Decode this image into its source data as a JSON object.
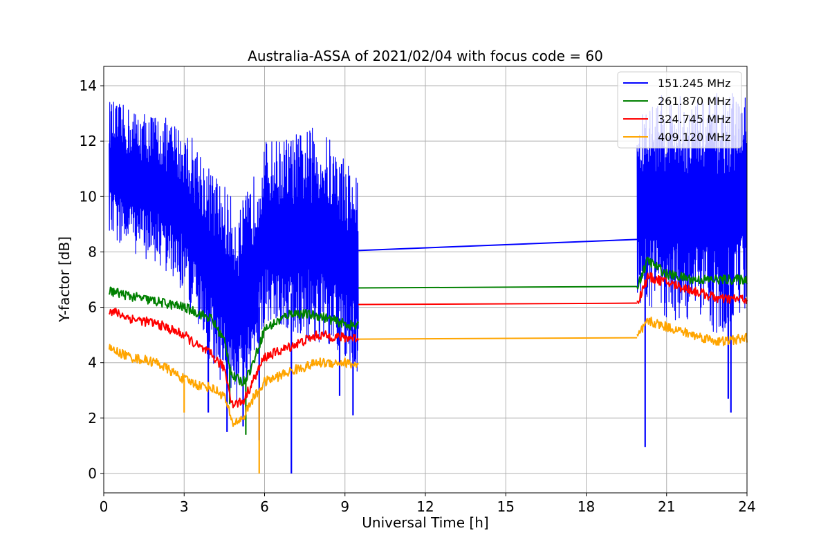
{
  "chart_data": {
    "type": "line",
    "title": "Australia-ASSA of 2021/02/04 with focus code = 60",
    "xlabel": "Universal Time [h]",
    "ylabel": "Y-factor [dB]",
    "xlim": [
      0,
      24
    ],
    "ylim": [
      -0.7,
      14.7
    ],
    "xticks": [
      0,
      3,
      6,
      9,
      12,
      15,
      18,
      21,
      24
    ],
    "yticks": [
      0,
      2,
      4,
      6,
      8,
      10,
      12,
      14
    ],
    "grid": true,
    "legend_position": "top-right",
    "data_gap_hours": [
      9.5,
      19.9
    ],
    "series": [
      {
        "name": "151.245 MHz",
        "color": "#0000ff",
        "style": "noisy",
        "x": [
          0.2,
          1,
          2,
          3,
          3.5,
          4,
          4.5,
          5,
          5.5,
          6,
          7,
          8,
          9,
          9.5,
          19.9,
          20.5,
          21,
          22,
          23,
          24
        ],
        "upper": [
          13.5,
          13.2,
          13.0,
          12.5,
          12.0,
          11.0,
          10.5,
          9.5,
          10.5,
          12.0,
          12.2,
          12.6,
          11.5,
          10.8,
          12.8,
          13.5,
          13.8,
          13.5,
          13.8,
          13.7
        ],
        "lower": [
          8.5,
          8.0,
          7.5,
          6.5,
          5.0,
          4.0,
          3.0,
          2.5,
          3.0,
          5.5,
          5.0,
          4.5,
          4.0,
          3.5,
          6.0,
          6.0,
          5.5,
          5.5,
          5.0,
          6.0
        ],
        "bridge": [
          8.05,
          8.45
        ],
        "spikes": [
          [
            3.9,
            2.2
          ],
          [
            4.6,
            1.5
          ],
          [
            5.2,
            1.7
          ],
          [
            5.8,
            1.2
          ],
          [
            7.0,
            0.0
          ],
          [
            8.8,
            2.8
          ],
          [
            9.3,
            2.1
          ],
          [
            20.2,
            0.95
          ],
          [
            23.3,
            2.7
          ],
          [
            23.4,
            2.2
          ]
        ]
      },
      {
        "name": "261.870 MHz",
        "color": "#008000",
        "style": "smooth",
        "x": [
          0.2,
          1,
          2,
          3,
          3.5,
          4,
          4.5,
          4.8,
          5.2,
          5.5,
          6,
          7,
          8,
          9,
          9.5,
          19.9,
          20.3,
          21,
          22,
          23,
          24
        ],
        "y": [
          6.6,
          6.4,
          6.2,
          6.0,
          5.8,
          5.6,
          4.8,
          3.5,
          3.3,
          3.8,
          5.2,
          5.8,
          5.7,
          5.4,
          5.3,
          6.75,
          7.7,
          7.2,
          7.0,
          7.0,
          7.0
        ],
        "bridge": [
          6.7,
          6.75
        ],
        "spikes": [
          [
            5.3,
            1.4
          ],
          [
            4.7,
            2.5
          ]
        ]
      },
      {
        "name": "324.745 MHz",
        "color": "#ff0000",
        "style": "smooth",
        "x": [
          0.2,
          1,
          2,
          3,
          3.5,
          4,
          4.5,
          4.8,
          5.2,
          5.5,
          6,
          7,
          8,
          9,
          9.5,
          19.9,
          20.3,
          21,
          22,
          23,
          24
        ],
        "y": [
          5.9,
          5.6,
          5.4,
          5.0,
          4.6,
          4.3,
          3.8,
          2.5,
          2.6,
          3.2,
          4.2,
          4.6,
          5.0,
          4.9,
          4.9,
          6.15,
          7.1,
          6.9,
          6.6,
          6.3,
          6.3
        ],
        "bridge": [
          6.1,
          6.15
        ],
        "spikes": []
      },
      {
        "name": "409.120 MHz",
        "color": "#ffa500",
        "style": "smooth",
        "x": [
          0.2,
          1,
          2,
          3,
          3.5,
          4,
          4.5,
          4.8,
          5.2,
          5.5,
          6,
          7,
          8,
          9,
          9.5,
          19.9,
          20.3,
          21,
          22,
          23,
          24
        ],
        "y": [
          4.5,
          4.2,
          4.0,
          3.4,
          3.2,
          3.1,
          2.8,
          1.8,
          2.0,
          2.6,
          3.3,
          3.7,
          4.0,
          4.0,
          3.9,
          4.9,
          5.5,
          5.3,
          5.0,
          4.75,
          4.9
        ],
        "bridge": [
          4.85,
          4.9
        ],
        "spikes": [
          [
            3.0,
            2.2
          ],
          [
            5.8,
            0.0
          ]
        ]
      }
    ]
  }
}
